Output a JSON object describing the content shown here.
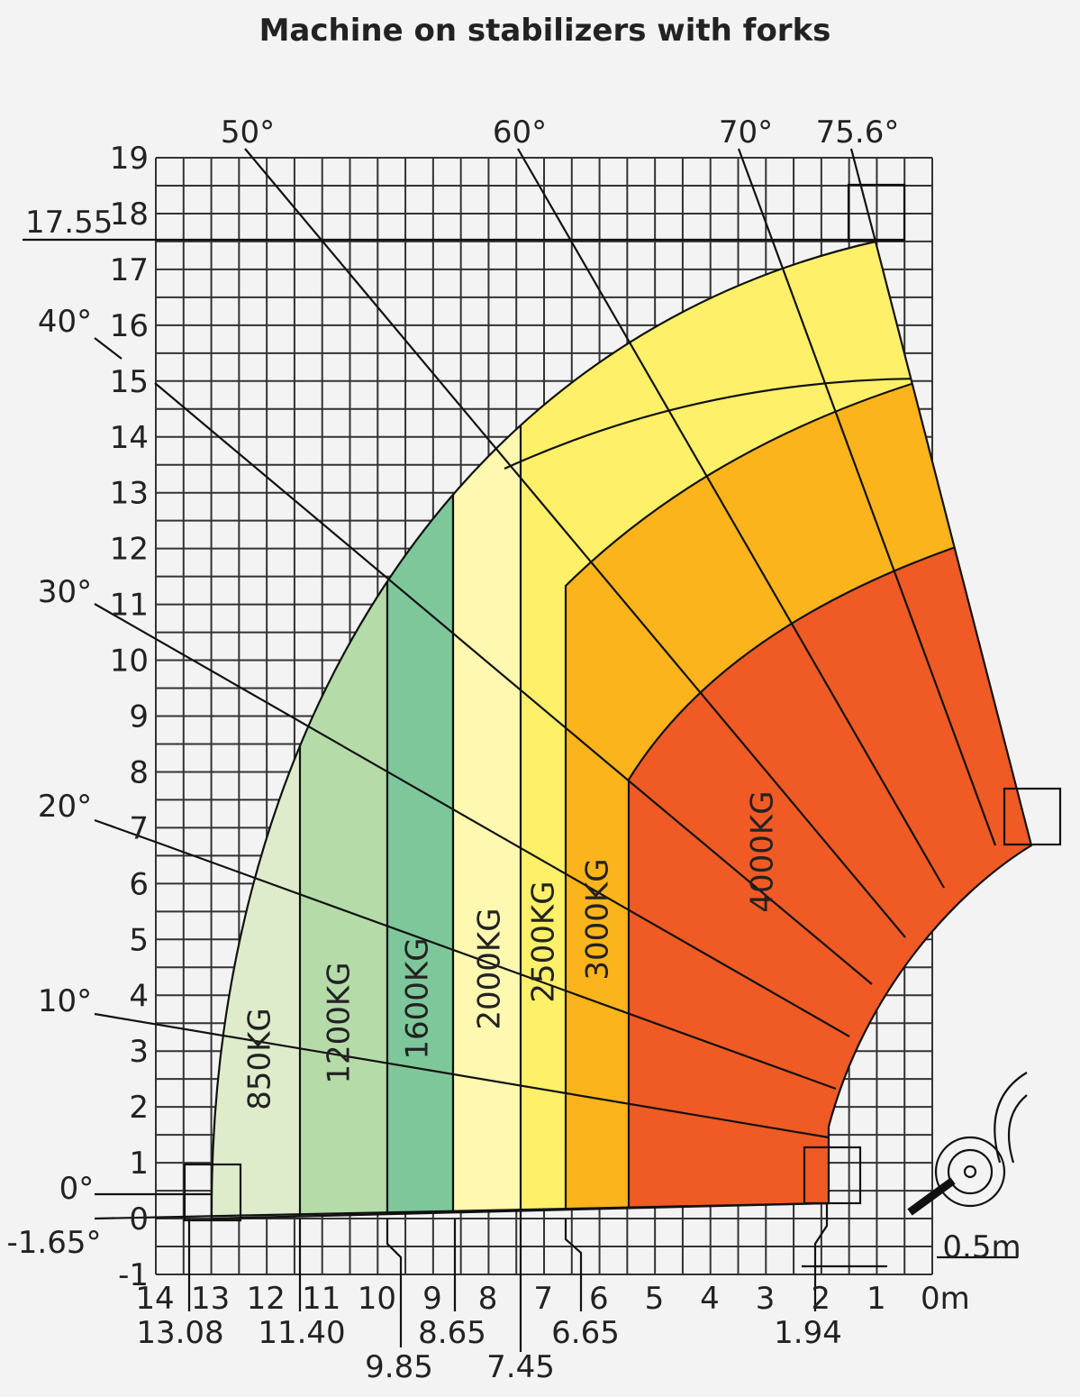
{
  "title": "Machine on stabilizers with forks",
  "y_axis": {
    "labels": [
      "19",
      "18",
      "17",
      "16",
      "15",
      "14",
      "13",
      "12",
      "11",
      "10",
      "9",
      "8",
      "7",
      "6",
      "5",
      "4",
      "3",
      "2",
      "1",
      "0",
      "-1"
    ]
  },
  "x_axis": {
    "labels": [
      "14",
      "13",
      "12",
      "11",
      "10",
      "9",
      "8",
      "7",
      "6",
      "5",
      "4",
      "3",
      "2",
      "1",
      "0m"
    ]
  },
  "height_marker": "17.55",
  "angles": [
    "50°",
    "60°",
    "70°",
    "75.6°",
    "40°",
    "30°",
    "20°",
    "10°",
    "0°",
    "-1.65°"
  ],
  "reach_markers": [
    "13.08",
    "11.40",
    "9.85",
    "8.65",
    "7.45",
    "6.65",
    "1.94"
  ],
  "loads": [
    "850KG",
    "1200KG",
    "1600KG",
    "2000KG",
    "2500KG",
    "3000KG",
    "4000KG"
  ],
  "scale_label": "0.5m"
}
